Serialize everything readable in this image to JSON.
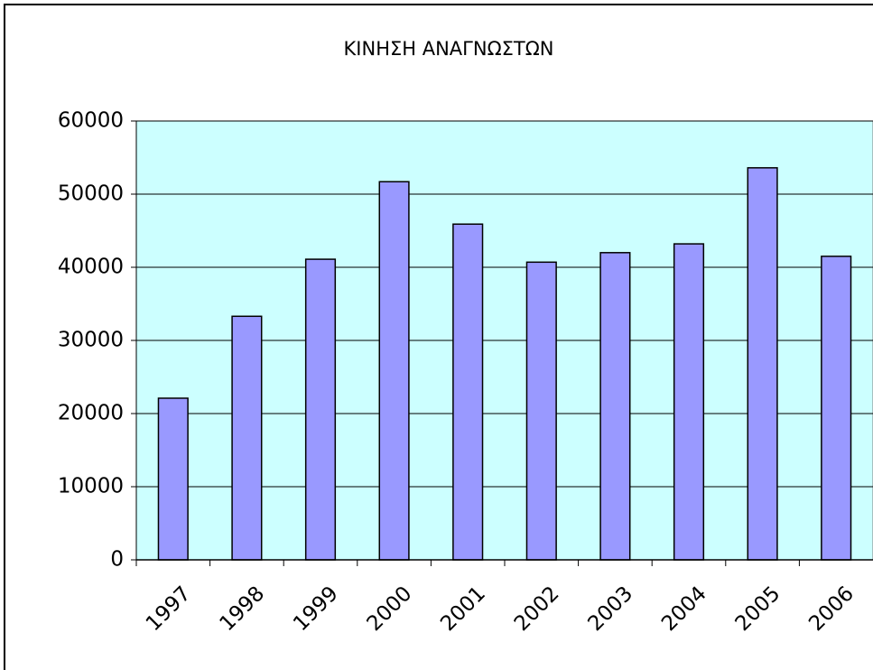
{
  "chart_data": {
    "type": "bar",
    "title": "ΚΙΝΗΣΗ ΑΝΑΓΝΩΣΤΩΝ",
    "categories": [
      "1997",
      "1998",
      "1999",
      "2000",
      "2001",
      "2002",
      "2003",
      "2004",
      "2005",
      "2006"
    ],
    "values": [
      22100,
      33300,
      41100,
      51700,
      45900,
      40700,
      42000,
      43200,
      53600,
      41500
    ],
    "color": "#9999ff",
    "plot_background": "#ccffff",
    "ylim": [
      0,
      60000
    ],
    "yticks": [
      0,
      10000,
      20000,
      30000,
      40000,
      50000,
      60000
    ],
    "grid": true
  }
}
